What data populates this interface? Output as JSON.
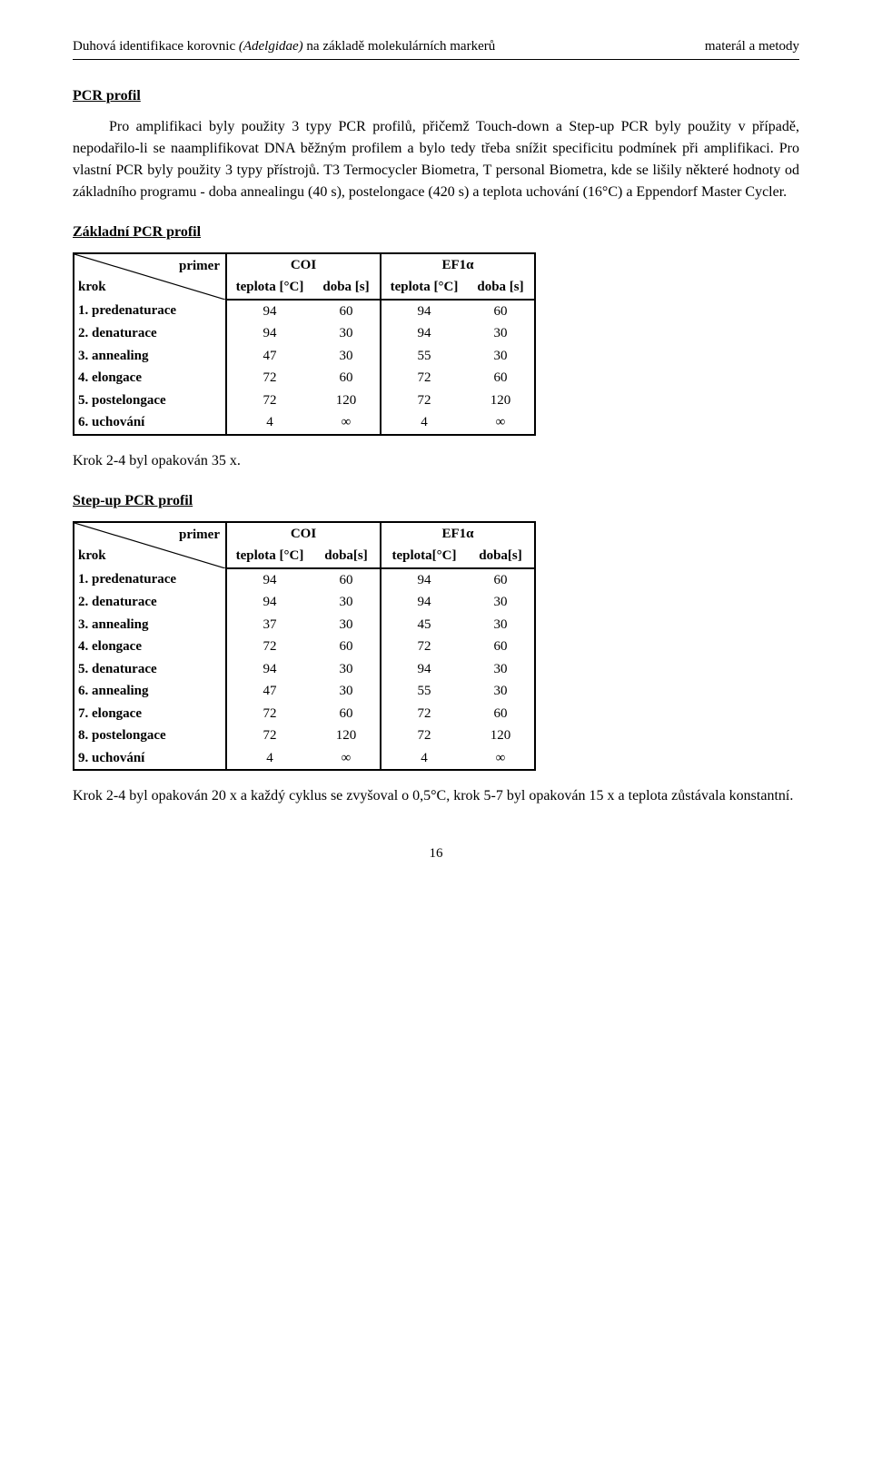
{
  "header": {
    "left_prefix": "Duhová identifikace korovnic ",
    "left_italic": "(Adelgidae)",
    "left_suffix": " na základě molekulárních markerů",
    "right": "materál a metody"
  },
  "section1": {
    "title": "PCR profil",
    "para": "Pro amplifikaci byly použity 3 typy PCR profilů, přičemž Touch-down a Step-up PCR byly použity v případě, nepodařilo-li se naamplifikovat DNA běžným profilem a bylo tedy třeba snížit specificitu podmínek při amplifikaci. Pro vlastní PCR byly použity 3 typy přístrojů. T3 Termocycler Biometra, T personal Biometra, kde se lišily některé hodnoty od základního programu - doba annealingu (40 s), postelongace (420 s) a teplota uchování (16°C) a Eppendorf Master Cycler."
  },
  "table_common": {
    "corner_primer": "primer",
    "corner_krok": "krok",
    "group1": "COI",
    "group2": "EF1α",
    "sub1": "teplota [°C]",
    "sub2": "doba [s]",
    "sub3": "teplota [°C]",
    "sub4": "doba [s]",
    "sub2b": "doba[s]",
    "sub3b": "teplota[°C]",
    "sub4b": "doba[s]"
  },
  "basic": {
    "title": "Základní PCR profil",
    "rows": [
      {
        "label": "1. predenaturace",
        "c1": "94",
        "c2": "60",
        "c3": "94",
        "c4": "60"
      },
      {
        "label": "2. denaturace",
        "c1": "94",
        "c2": "30",
        "c3": "94",
        "c4": "30"
      },
      {
        "label": "3. annealing",
        "c1": "47",
        "c2": "30",
        "c3": "55",
        "c4": "30"
      },
      {
        "label": "4. elongace",
        "c1": "72",
        "c2": "60",
        "c3": "72",
        "c4": "60"
      },
      {
        "label": "5. postelongace",
        "c1": "72",
        "c2": "120",
        "c3": "72",
        "c4": "120"
      },
      {
        "label": "6. uchování",
        "c1": "4",
        "c2": "∞",
        "c3": "4",
        "c4": "∞"
      }
    ],
    "footnote": "Krok 2-4 byl opakován 35 x."
  },
  "stepup": {
    "title": "Step-up PCR profil",
    "rows": [
      {
        "label": "1. predenaturace",
        "c1": "94",
        "c2": "60",
        "c3": "94",
        "c4": "60"
      },
      {
        "label": "2. denaturace",
        "c1": "94",
        "c2": "30",
        "c3": "94",
        "c4": "30"
      },
      {
        "label": "3. annealing",
        "c1": "37",
        "c2": "30",
        "c3": "45",
        "c4": "30"
      },
      {
        "label": "4. elongace",
        "c1": "72",
        "c2": "60",
        "c3": "72",
        "c4": "60"
      },
      {
        "label": "5. denaturace",
        "c1": "94",
        "c2": "30",
        "c3": "94",
        "c4": "30"
      },
      {
        "label": "6. annealing",
        "c1": "47",
        "c2": "30",
        "c3": "55",
        "c4": "30"
      },
      {
        "label": "7. elongace",
        "c1": "72",
        "c2": "60",
        "c3": "72",
        "c4": "60"
      },
      {
        "label": "8. postelongace",
        "c1": "72",
        "c2": "120",
        "c3": "72",
        "c4": "120"
      },
      {
        "label": "9. uchování",
        "c1": "4",
        "c2": "∞",
        "c3": "4",
        "c4": "∞"
      }
    ],
    "footnote": "Krok 2-4 byl opakován 20 x a každý cyklus se zvyšoval o 0,5°C, krok 5-7 byl opakován 15 x a teplota zůstávala konstantní."
  },
  "page_number": "16",
  "col_widths": {
    "c0": 150,
    "c1": 95,
    "c2": 75,
    "c3": 95,
    "c4": 75
  }
}
